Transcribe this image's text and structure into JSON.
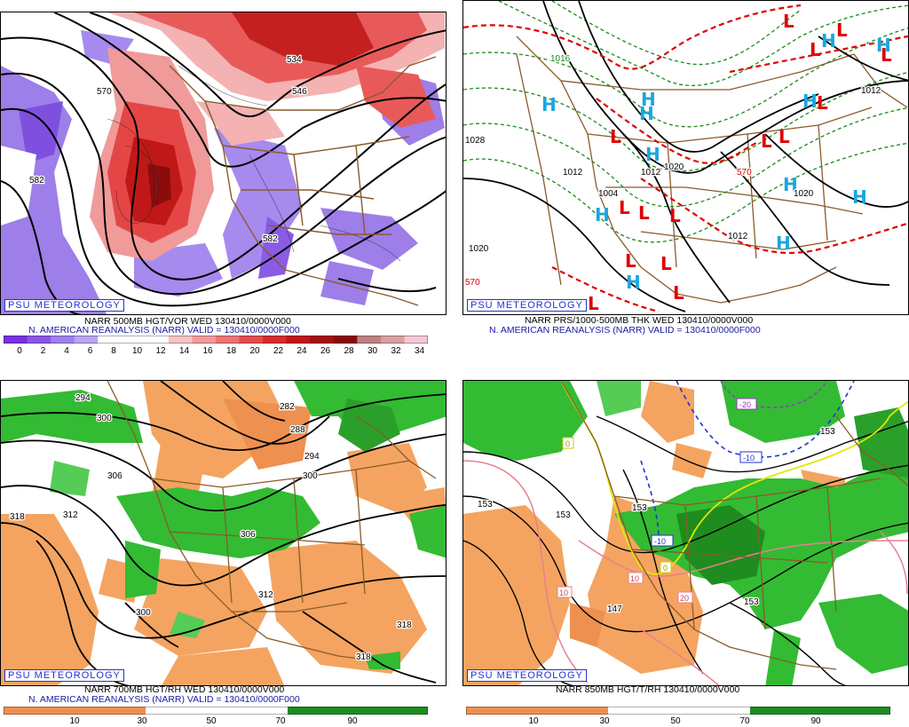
{
  "badge": "PSU METEOROLOGY",
  "panels": {
    "vort500": {
      "caption1": "NARR 500MB HGT/VOR WED 130410/0000V000",
      "caption2": "N. AMERICAN REANALYSIS (NARR) VALID = 130410/0000F000",
      "scale": [
        "0",
        "2",
        "4",
        "6",
        "8",
        "10",
        "12",
        "14",
        "16",
        "18",
        "20",
        "22",
        "24",
        "26",
        "28",
        "30",
        "32",
        "34"
      ],
      "contour_labels": [
        "534",
        "546",
        "570",
        "582",
        "582"
      ],
      "colors": [
        "#7a30e0",
        "#8c55e8",
        "#a07ff0",
        "#b9a5f2",
        "#ffffff",
        "#ffffff",
        "#ffffff",
        "#f7c2c2",
        "#f29a9a",
        "#ee7373",
        "#e84a4a",
        "#d92a2a",
        "#c21414",
        "#a80e0e",
        "#8a0a0a",
        "#c08080",
        "#d8a0a0",
        "#f4c8d8"
      ]
    },
    "thk": {
      "caption1": "NARR PRS/1000-500MB THK WED 130410/0000V000",
      "caption2": "N. AMERICAN REANALYSIS (NARR) VALID = 130410/0000F000",
      "contour_labels": [
        "1028",
        "1020",
        "1012",
        "1004",
        "1020",
        "1012",
        "1012",
        "1020",
        "570",
        "570",
        "1012",
        "1016"
      ]
    },
    "rh700": {
      "caption1": "NARR 700MB HGT/RH WED 130410/0000V000",
      "caption2": "N. AMERICAN REANALYSIS (NARR) VALID = 130410/0000F000",
      "scale": [
        "10",
        "30",
        "50",
        "70",
        "90"
      ],
      "contour_labels": [
        "294",
        "300",
        "306",
        "318",
        "312",
        "282",
        "288",
        "294",
        "300",
        "306",
        "312",
        "300",
        "318",
        "318"
      ]
    },
    "t850": {
      "caption1": "NARR 850MB HGT/T/RH 130410/0000V000",
      "scale": [
        "10",
        "30",
        "50",
        "70",
        "90"
      ],
      "contour_labels": [
        "153",
        "153",
        "153",
        "153",
        "153",
        "147",
        "-20",
        "-10",
        "-10",
        "10",
        "0",
        "0",
        "10",
        "20"
      ]
    }
  }
}
